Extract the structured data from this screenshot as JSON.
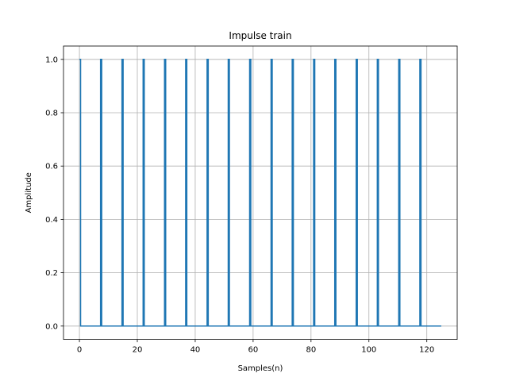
{
  "chart_data": {
    "type": "line",
    "title": "Impulse train",
    "xlabel": "Samples(n)",
    "ylabel": "Amplitude",
    "xlim": [
      -5.5,
      130.5
    ],
    "ylim": [
      -0.05,
      1.05
    ],
    "xticks": [
      0,
      20,
      40,
      60,
      80,
      100,
      120
    ],
    "yticks": [
      0.0,
      0.2,
      0.4,
      0.6,
      0.8,
      1.0
    ],
    "xtick_labels": [
      "0",
      "20",
      "40",
      "60",
      "80",
      "100",
      "120"
    ],
    "ytick_labels": [
      "0.0",
      "0.2",
      "0.4",
      "0.6",
      "0.8",
      "1.0"
    ],
    "grid": true,
    "series": [
      {
        "color": "#1f77b4",
        "x": [
          0,
          0.4,
          0.4,
          7.3,
          7.3,
          7.7,
          7.7,
          14.7,
          14.7,
          15.1,
          15.1,
          22.0,
          22.0,
          22.4,
          22.4,
          29.4,
          29.4,
          29.8,
          29.8,
          36.7,
          36.7,
          37.1,
          37.1,
          44.1,
          44.1,
          44.5,
          44.5,
          51.4,
          51.4,
          51.8,
          51.8,
          58.8,
          58.8,
          59.2,
          59.2,
          66.2,
          66.2,
          66.6,
          66.6,
          73.5,
          73.5,
          73.9,
          73.9,
          80.9,
          80.9,
          81.3,
          81.3,
          88.2,
          88.2,
          88.6,
          88.6,
          95.6,
          95.6,
          96.0,
          96.0,
          102.9,
          102.9,
          103.3,
          103.3,
          110.3,
          110.3,
          110.7,
          110.7,
          117.6,
          117.6,
          118.0,
          118.0,
          125
        ],
        "y": [
          1,
          1,
          0,
          0,
          1,
          1,
          0,
          0,
          1,
          1,
          0,
          0,
          1,
          1,
          0,
          0,
          1,
          1,
          0,
          0,
          1,
          1,
          0,
          0,
          1,
          1,
          0,
          0,
          1,
          1,
          0,
          0,
          1,
          1,
          0,
          0,
          1,
          1,
          0,
          0,
          1,
          1,
          0,
          0,
          1,
          1,
          0,
          0,
          1,
          1,
          0,
          0,
          1,
          1,
          0,
          0,
          1,
          1,
          0,
          0,
          1,
          1,
          0,
          0,
          1,
          1,
          0,
          0
        ]
      }
    ]
  }
}
